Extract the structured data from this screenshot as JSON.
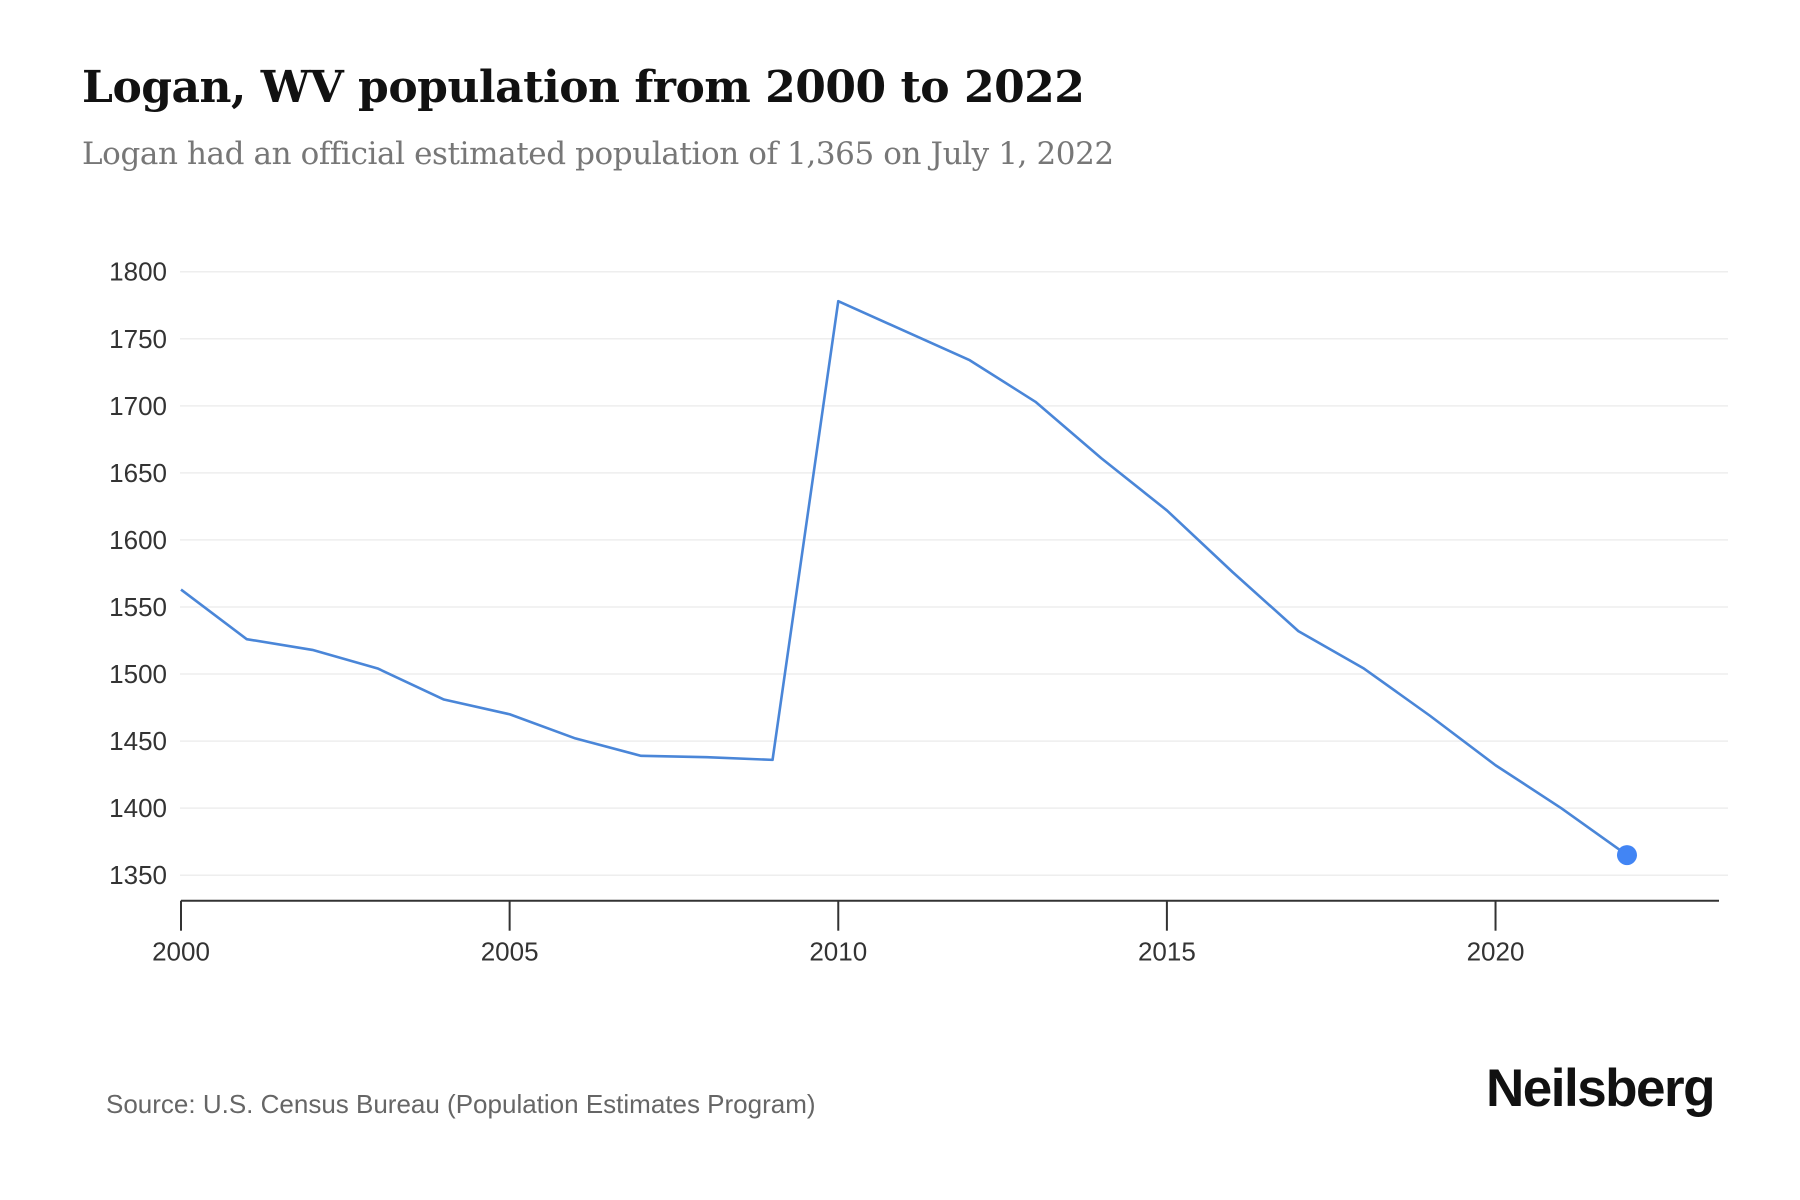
{
  "header": {
    "title": "Logan, WV population from 2000 to 2022",
    "subtitle": "Logan had an official estimated population of 1,365 on July 1, 2022"
  },
  "footer": {
    "source": "Source: U.S. Census Bureau (Population Estimates Program)",
    "brand": "Neilsberg"
  },
  "colors": {
    "line": "#4a86d8",
    "highlight_point": "#4285f4",
    "grid": "#eeeeee",
    "axis": "#333333"
  },
  "chart_data": {
    "type": "line",
    "title": "Logan, WV population from 2000 to 2022",
    "subtitle": "Logan had an official estimated population of 1,365 on July 1, 2022",
    "xlabel": "",
    "ylabel": "",
    "x": [
      2000,
      2001,
      2002,
      2003,
      2004,
      2005,
      2006,
      2007,
      2008,
      2009,
      2010,
      2011,
      2012,
      2013,
      2014,
      2015,
      2016,
      2017,
      2018,
      2019,
      2020,
      2021,
      2022
    ],
    "series": [
      {
        "name": "Population",
        "values": [
          1563,
          1526,
          1518,
          1504,
          1481,
          1470,
          1452,
          1439,
          1438,
          1436,
          1778,
          1756,
          1734,
          1703,
          1661,
          1622,
          1576,
          1532,
          1504,
          1469,
          1432,
          1400,
          1365
        ]
      }
    ],
    "highlight": {
      "x": 2022,
      "value": 1365
    },
    "xticks": [
      2000,
      2005,
      2010,
      2015,
      2020
    ],
    "yticks": [
      1350,
      1400,
      1450,
      1500,
      1550,
      1600,
      1650,
      1700,
      1750,
      1800
    ],
    "xlim": [
      2000,
      2023.4
    ],
    "ylim": [
      1331,
      1800
    ],
    "grid": true,
    "legend": "none"
  }
}
